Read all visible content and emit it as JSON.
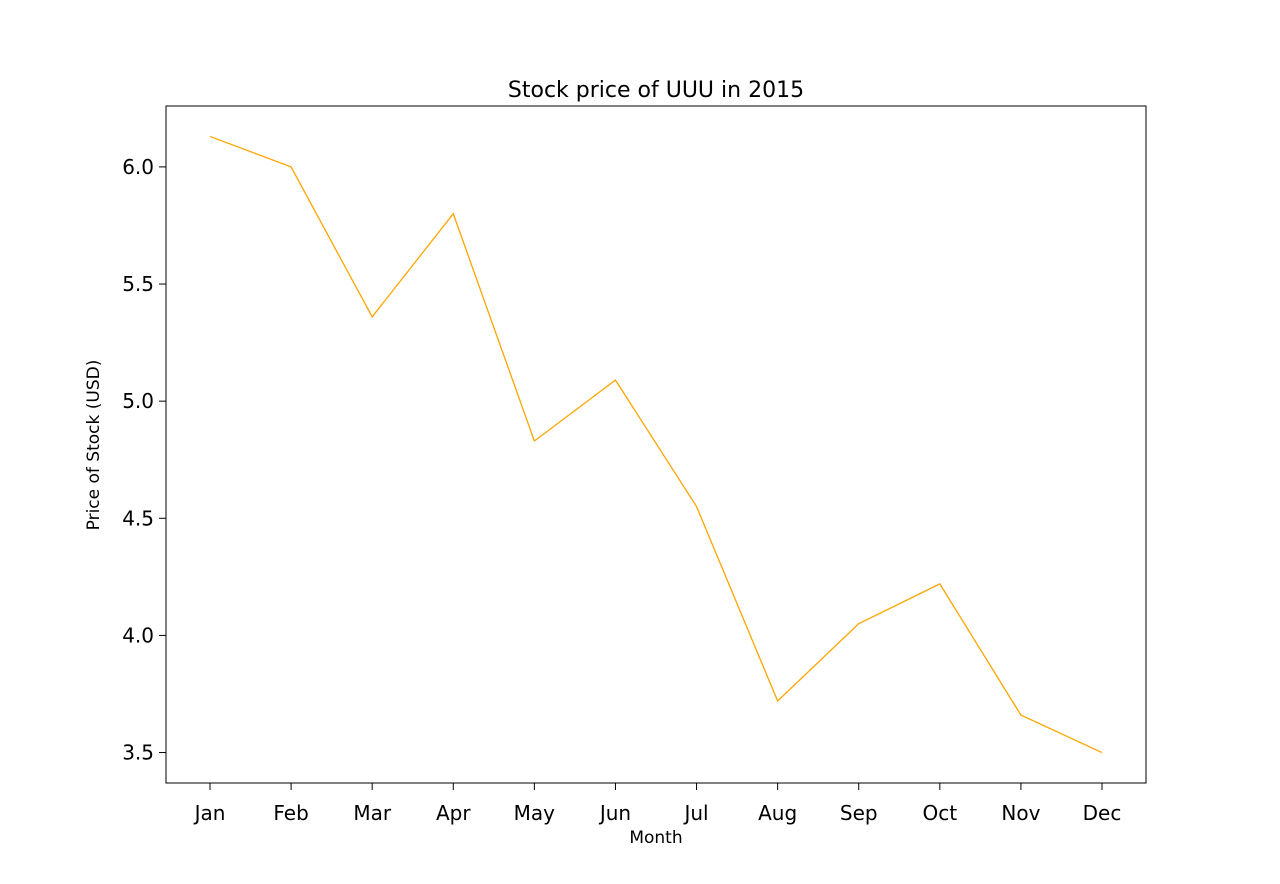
{
  "chart_data": {
    "type": "line",
    "title": "Stock price of UUU in 2015",
    "xlabel": "Month",
    "ylabel": "Price of Stock (USD)",
    "categories": [
      "Jan",
      "Feb",
      "Mar",
      "Apr",
      "May",
      "Jun",
      "Jul",
      "Aug",
      "Sep",
      "Oct",
      "Nov",
      "Dec"
    ],
    "series": [
      {
        "values": [
          6.13,
          6.0,
          5.36,
          5.8,
          4.83,
          5.09,
          4.55,
          3.72,
          4.05,
          4.22,
          3.66,
          3.5
        ],
        "color": "#ffa500"
      }
    ],
    "ylim": [
      3.37,
      6.26
    ],
    "yticks": [
      "3.5",
      "4.0",
      "4.5",
      "5.0",
      "5.5",
      "6.0"
    ],
    "grid": false,
    "legend": "none"
  }
}
